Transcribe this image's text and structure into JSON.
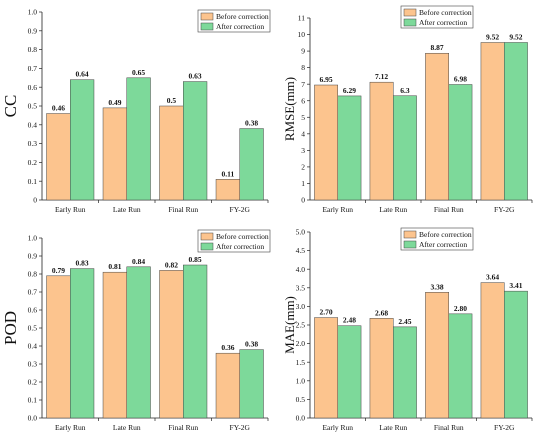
{
  "colors": {
    "before": "#FCC48E",
    "after": "#7DD99A",
    "bar_stroke": "#444444"
  },
  "legend": {
    "before_label": "Before correction",
    "after_label": "After correction"
  },
  "chart_data": [
    {
      "type": "bar",
      "ylabel": "CC",
      "categories": [
        "Early Run",
        "Late Run",
        "Final Run",
        "FY-2G"
      ],
      "ylim": [
        0,
        1.0
      ],
      "yticks": [
        "0",
        "0.1",
        "0.2",
        "0.3",
        "0.4",
        "0.5",
        "0.6",
        "0.7",
        "0.8",
        "0.9",
        "1.0"
      ],
      "series": [
        {
          "name": "Before correction",
          "values": [
            0.46,
            0.49,
            0.5,
            0.11
          ],
          "labels": [
            "0.46",
            "0.49",
            "0.5",
            "0.11"
          ]
        },
        {
          "name": "After correction",
          "values": [
            0.64,
            0.65,
            0.63,
            0.38
          ],
          "labels": [
            "0.64",
            "0.65",
            "0.63",
            "0.38"
          ]
        }
      ],
      "legend_position": "top-right",
      "grid": false
    },
    {
      "type": "bar",
      "ylabel": "RMSE(mm)",
      "categories": [
        "Early Run",
        "Late Run",
        "Final Run",
        "FY-2G"
      ],
      "ylim": [
        0,
        11
      ],
      "yticks": [
        "0",
        "1",
        "2",
        "3",
        "4",
        "5",
        "6",
        "7",
        "8",
        "9",
        "10",
        "11"
      ],
      "series": [
        {
          "name": "Before correction",
          "values": [
            6.95,
            7.12,
            8.87,
            9.52
          ],
          "labels": [
            "6.95",
            "7.12",
            "8.87",
            "9.52"
          ]
        },
        {
          "name": "After correction",
          "values": [
            6.29,
            6.3,
            6.98,
            9.52
          ],
          "labels": [
            "6.29",
            "6.3",
            "6.98",
            "9.52"
          ]
        }
      ],
      "legend_position": "top-right",
      "grid": false
    },
    {
      "type": "bar",
      "ylabel": "POD",
      "categories": [
        "Early Run",
        "Late Run",
        "Final Run",
        "FY-2G"
      ],
      "ylim": [
        0,
        1.0
      ],
      "yticks": [
        "0.0",
        "0.1",
        "0.2",
        "0.3",
        "0.4",
        "0.5",
        "0.6",
        "0.7",
        "0.8",
        "0.9",
        "1.0"
      ],
      "series": [
        {
          "name": "Before correction",
          "values": [
            0.79,
            0.81,
            0.82,
            0.36
          ],
          "labels": [
            "0.79",
            "0.81",
            "0.82",
            "0.36"
          ]
        },
        {
          "name": "After correction",
          "values": [
            0.83,
            0.84,
            0.85,
            0.38
          ],
          "labels": [
            "0.83",
            "0.84",
            "0.85",
            "0.38"
          ]
        }
      ],
      "legend_position": "top-right",
      "grid": false
    },
    {
      "type": "bar",
      "ylabel": "MAE(mm)",
      "categories": [
        "Early Run",
        "Late Run",
        "Final Run",
        "FY-2G"
      ],
      "ylim": [
        0,
        5.0
      ],
      "yticks": [
        "0.0",
        "0.5",
        "1.0",
        "1.5",
        "2.0",
        "2.5",
        "3.0",
        "3.5",
        "4.0",
        "4.5",
        "5.0"
      ],
      "series": [
        {
          "name": "Before correction",
          "values": [
            2.7,
            2.68,
            3.38,
            3.64
          ],
          "labels": [
            "2.70",
            "2.68",
            "3.38",
            "3.64"
          ]
        },
        {
          "name": "After correction",
          "values": [
            2.48,
            2.45,
            2.8,
            3.41
          ],
          "labels": [
            "2.48",
            "2.45",
            "2.80",
            "3.41"
          ]
        }
      ],
      "legend_position": "top-right",
      "grid": false
    }
  ]
}
